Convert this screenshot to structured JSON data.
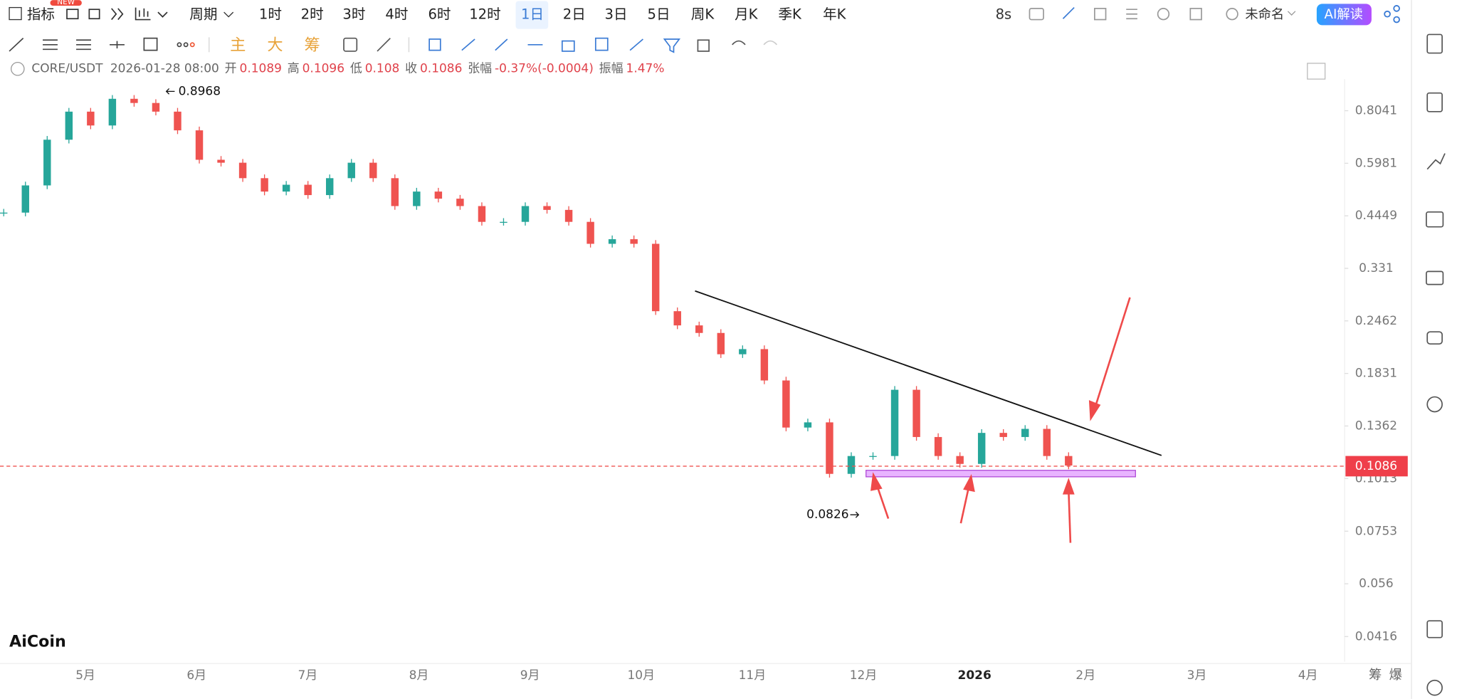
{
  "toolbar": {
    "badge": "NEW",
    "indicator": "指标",
    "period": "周期",
    "intervals": [
      "1时",
      "2时",
      "3时",
      "4时",
      "6时",
      "12时",
      "1日",
      "2日",
      "3日",
      "5日",
      "周K",
      "月K",
      "季K",
      "年K"
    ],
    "refresh": "8s",
    "layout_name": "未命名",
    "ai_button": "AI解读"
  },
  "drawing_tools": [
    "主",
    "大",
    "筹"
  ],
  "info": {
    "symbol": "CORE/USDT",
    "datetime": "2026-01-28 08:00",
    "fields": [
      {
        "label": "开",
        "value": 0.1089
      },
      {
        "label": "高",
        "value": 0.1096
      },
      {
        "label": "低",
        "value": 0.108
      },
      {
        "label": "收",
        "value": 0.1086
      },
      {
        "label": "张幅",
        "value": "-0.37%(-0.0004)"
      },
      {
        "label": "振幅",
        "value": "1.47%"
      }
    ]
  },
  "chart_data": {
    "type": "candlestick",
    "log_scale": true,
    "closes": [
      0.453,
      0.528,
      0.683,
      0.8,
      0.74,
      0.86,
      0.84,
      0.8,
      0.72,
      0.61,
      0.6,
      0.55,
      0.51,
      0.53,
      0.5,
      0.55,
      0.6,
      0.55,
      0.47,
      0.51,
      0.49,
      0.47,
      0.43,
      0.43,
      0.47,
      0.46,
      0.43,
      0.38,
      0.39,
      0.38,
      0.26,
      0.24,
      0.23,
      0.204,
      0.21,
      0.176,
      0.135,
      0.139,
      0.104,
      0.115,
      0.115,
      0.167,
      0.128,
      0.115,
      0.11,
      0.131,
      0.128,
      0.134,
      0.115,
      0.109
    ],
    "up_color": "#26a69a",
    "down_color": "#ef5350",
    "ylim": [
      0.0361,
      0.961
    ],
    "yticks": [
      0.8041,
      0.5981,
      0.4449,
      0.331,
      0.2462,
      0.1831,
      0.1362,
      0.1013,
      0.0753,
      0.056,
      0.0416
    ],
    "months": [
      "5月",
      "6月",
      "7月",
      "8月",
      "9月",
      "10月",
      "11月",
      "12月",
      "2026",
      "2月",
      "3月",
      "4月"
    ],
    "last_price": 0.1086,
    "high_mark": 0.8968,
    "low_mark": 0.0826
  },
  "footer": {
    "logo": "AiCoin",
    "buttons": [
      "筹",
      "爆"
    ]
  }
}
